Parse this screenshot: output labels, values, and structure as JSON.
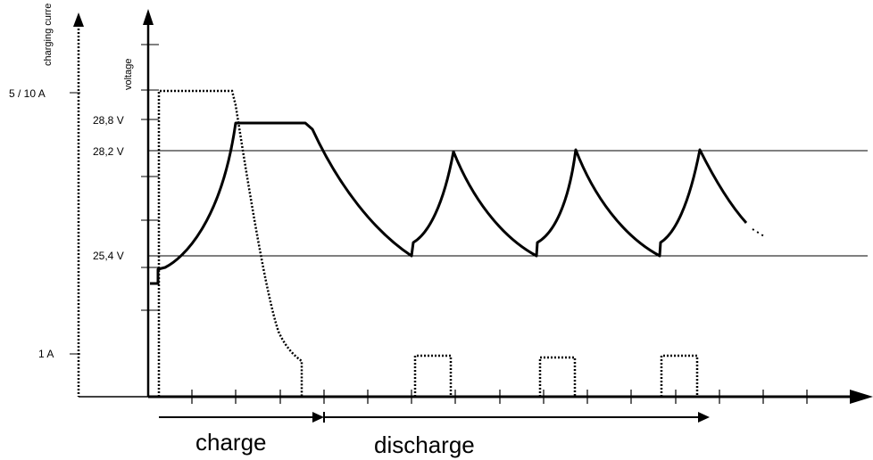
{
  "axes": {
    "current_title": "charging curre",
    "voltage_title": "voltage",
    "current_ticks": {
      "high": "5 / 10 A",
      "low": "1 A"
    },
    "voltage_ticks": {
      "v288": "28,8 V",
      "v282": "28,2 V",
      "v254": "25,4 V"
    }
  },
  "phases": {
    "charge": "charge",
    "discharge": "discharge"
  },
  "colors": {
    "line": "#000000",
    "background": "#ffffff"
  }
}
